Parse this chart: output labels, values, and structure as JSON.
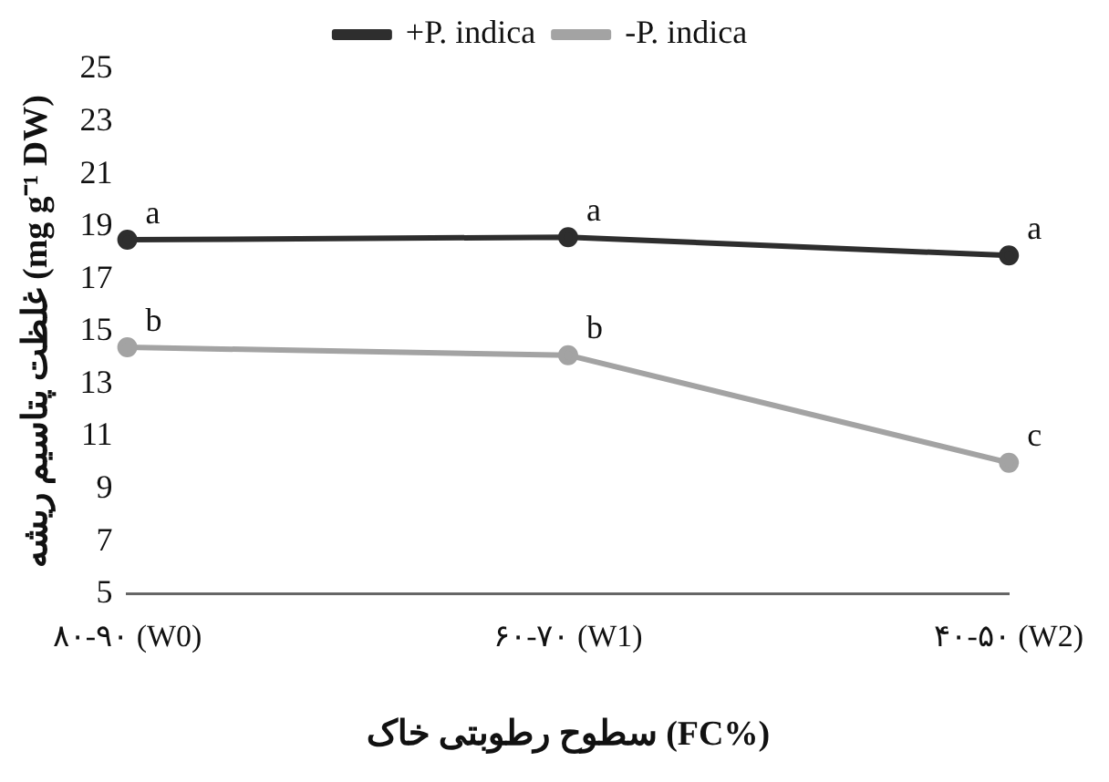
{
  "chart_data": {
    "type": "line",
    "ylabel": "غلظت پتاسیم ریشه (mg g⁻¹ DW)",
    "xlabel": "سطوح رطوبتی خاک (FC%)",
    "categories": [
      "۸۰-۹۰ (W0)",
      "۶۰-۷۰ (W1)",
      "۴۰-۵۰ (W2)"
    ],
    "series": [
      {
        "name": "+P. indica",
        "color": "#2e2e2e",
        "values": [
          18.5,
          18.6,
          17.9
        ]
      },
      {
        "name": "-P. indica",
        "color": "#a3a3a3",
        "values": [
          14.4,
          14.1,
          10.0
        ]
      }
    ],
    "ylim": [
      5,
      25
    ],
    "yticks": [
      5,
      7,
      9,
      11,
      13,
      15,
      17,
      19,
      21,
      23,
      25
    ],
    "grid": false,
    "legend": "top",
    "marker": "circle",
    "line_style": "solid",
    "annotations": [
      {
        "text": "a",
        "x": "۸۰-۹۰ (W0)",
        "y": 18.5
      },
      {
        "text": "a",
        "x": "۶۰-۷۰ (W1)",
        "y": 18.6
      },
      {
        "text": "a",
        "x": "۴۰-۵۰ (W2)",
        "y": 17.9
      },
      {
        "text": "b",
        "x": "۸۰-۹۰ (W0)",
        "y": 14.4
      },
      {
        "text": "b",
        "x": "۶۰-۷۰ (W1)",
        "y": 14.1
      },
      {
        "text": "c",
        "x": "۴۰-۵۰ (W2)",
        "y": 10.0
      }
    ]
  }
}
